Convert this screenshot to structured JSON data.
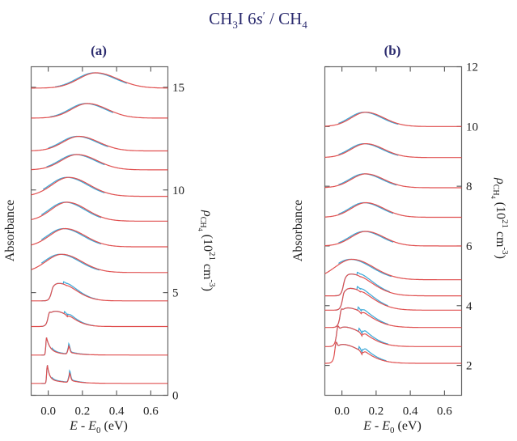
{
  "figure": {
    "title_parts": [
      "CH",
      "3",
      "I 6",
      "s",
      "′",
      " / CH",
      "4"
    ],
    "title_plain": "CH3I 6s' / CH4"
  },
  "chart_data": [
    {
      "type": "line",
      "panel_label": "(a)",
      "xlabel_parts": [
        "E",
        " - ",
        "E",
        "0",
        " (eV)"
      ],
      "xlabel": "E - E0 (eV)",
      "ylabel_left": "Absorbance",
      "ylabel_right_parts": [
        "ρ",
        "CH",
        "4",
        " (10",
        "21",
        " cm",
        "-3",
        ")"
      ],
      "ylabel_right": "ρCH4 (10^21 cm^-3)",
      "xlim": [
        -0.1,
        0.7
      ],
      "xticks": [
        0.0,
        0.2,
        0.4,
        0.6
      ],
      "xtick_labels": [
        "0.0",
        "0.2",
        "0.4",
        "0.6"
      ],
      "ylim_right": [
        0,
        16
      ],
      "yticks_right": [
        0,
        5,
        10,
        15
      ],
      "ytick_labels_right": [
        "0",
        "5",
        "10",
        "15"
      ],
      "grid": false,
      "series_legend": [
        "experiment (blue)",
        "fit (red)"
      ],
      "traces": [
        {
          "density": 0.58,
          "shape": "sharp",
          "peak_eV": -0.005,
          "amp": 1.25,
          "width_eV": 0.012,
          "second_peak_eV": 0.125,
          "second_amp": 0.45,
          "exp_end_eV": 0.22
        },
        {
          "density": 1.96,
          "shape": "sharp",
          "peak_eV": -0.01,
          "amp": 1.2,
          "width_eV": 0.02,
          "second_peak_eV": 0.12,
          "second_amp": 0.4,
          "exp_end_eV": 0.24
        },
        {
          "density": 3.35,
          "shape": "mixed",
          "peak_eV": 0.04,
          "amp": 1.05,
          "width_eV": 0.09,
          "second_peak_eV": 0.115,
          "second_amp": 0.15,
          "exp_end_eV": 0.27
        },
        {
          "density": 4.6,
          "shape": "mixed",
          "peak_eV": 0.06,
          "amp": 1.2,
          "width_eV": 0.1,
          "second_peak_eV": 0.11,
          "second_amp": 0.05,
          "exp_end_eV": 0.29
        },
        {
          "density": 5.98,
          "shape": "broad",
          "peak_eV": 0.08,
          "amp": 1.25,
          "width_eV": 0.11,
          "exp_start_eV": -0.04,
          "exp_end_eV": 0.3
        },
        {
          "density": 7.23,
          "shape": "broad",
          "peak_eV": 0.1,
          "amp": 1.25,
          "width_eV": 0.11,
          "exp_start_eV": -0.04,
          "exp_end_eV": 0.31
        },
        {
          "density": 8.48,
          "shape": "broad",
          "peak_eV": 0.11,
          "amp": 1.3,
          "width_eV": 0.11,
          "exp_start_eV": -0.04,
          "exp_end_eV": 0.31
        },
        {
          "density": 9.69,
          "shape": "broad",
          "peak_eV": 0.12,
          "amp": 1.3,
          "width_eV": 0.115,
          "exp_start_eV": -0.03,
          "exp_end_eV": 0.33
        },
        {
          "density": 10.98,
          "shape": "broad",
          "peak_eV": 0.17,
          "amp": 1.05,
          "width_eV": 0.11,
          "exp_start_eV": -0.01,
          "exp_end_eV": 0.33
        },
        {
          "density": 11.9,
          "shape": "broad",
          "peak_eV": 0.18,
          "amp": 1.0,
          "width_eV": 0.11,
          "exp_start_eV": 0.0,
          "exp_end_eV": 0.35
        },
        {
          "density": 13.5,
          "shape": "broad",
          "peak_eV": 0.23,
          "amp": 1.0,
          "width_eV": 0.11,
          "exp_start_eV": 0.01,
          "exp_end_eV": 0.38
        },
        {
          "density": 14.96,
          "shape": "broad",
          "peak_eV": 0.28,
          "amp": 1.05,
          "width_eV": 0.12,
          "exp_start_eV": 0.04,
          "exp_end_eV": 0.46
        }
      ]
    },
    {
      "type": "line",
      "panel_label": "(b)",
      "xlabel_parts": [
        "E",
        " - ",
        "E",
        "0",
        " (eV)"
      ],
      "xlabel": "E - E0 (eV)",
      "ylabel_left": "Absorbance",
      "ylabel_right_parts": [
        "ρ",
        "CH",
        "4",
        " (10",
        "21",
        " cm",
        "-3",
        ")"
      ],
      "ylabel_right": "ρCH4 (10^21 cm^-3)",
      "xlim": [
        -0.1,
        0.7
      ],
      "xticks": [
        0.0,
        0.2,
        0.4,
        0.6
      ],
      "xtick_labels": [
        "0.0",
        "0.2",
        "0.4",
        "0.6"
      ],
      "ylim_right": [
        1.0,
        12.0
      ],
      "yticks_right": [
        2,
        4,
        6,
        8,
        10,
        12
      ],
      "ytick_labels_right": [
        "2",
        "4",
        "6",
        "8",
        "10",
        "12"
      ],
      "grid": false,
      "series_legend": [
        "experiment (blue)",
        "fit (red)"
      ],
      "traces": [
        {
          "density": 2.07,
          "shape": "mixed",
          "peak_eV": 0.0,
          "amp": 1.3,
          "width_eV": 0.12,
          "second_peak_eV": 0.12,
          "second_amp": 0.35,
          "exp_end_eV": 0.26
        },
        {
          "density": 2.63,
          "shape": "mixed",
          "peak_eV": 0.01,
          "amp": 1.35,
          "width_eV": 0.12,
          "second_peak_eV": 0.12,
          "second_amp": 0.3,
          "exp_end_eV": 0.27
        },
        {
          "density": 3.27,
          "shape": "mixed",
          "peak_eV": 0.03,
          "amp": 1.35,
          "width_eV": 0.12,
          "second_peak_eV": 0.115,
          "second_amp": 0.2,
          "exp_end_eV": 0.27
        },
        {
          "density": 3.85,
          "shape": "mixed",
          "peak_eV": 0.045,
          "amp": 1.5,
          "width_eV": 0.12,
          "second_peak_eV": 0.11,
          "second_amp": 0.1,
          "exp_end_eV": 0.27
        },
        {
          "density": 4.33,
          "shape": "mixed",
          "peak_eV": 0.05,
          "amp": 1.5,
          "width_eV": 0.12,
          "second_peak_eV": 0.11,
          "second_amp": 0.05,
          "exp_end_eV": 0.28
        },
        {
          "density": 4.87,
          "shape": "broad",
          "peak_eV": 0.06,
          "amp": 1.4,
          "width_eV": 0.12,
          "exp_start_eV": -0.02,
          "exp_end_eV": 0.29
        },
        {
          "density": 6.0,
          "shape": "broad",
          "peak_eV": 0.14,
          "amp": 1.0,
          "width_eV": 0.1,
          "exp_start_eV": -0.02,
          "exp_end_eV": 0.3
        },
        {
          "density": 6.96,
          "shape": "broad",
          "peak_eV": 0.14,
          "amp": 1.0,
          "width_eV": 0.1,
          "exp_start_eV": -0.02,
          "exp_end_eV": 0.3
        },
        {
          "density": 7.95,
          "shape": "broad",
          "peak_eV": 0.14,
          "amp": 0.95,
          "width_eV": 0.1,
          "exp_start_eV": -0.02,
          "exp_end_eV": 0.32
        },
        {
          "density": 8.96,
          "shape": "broad",
          "peak_eV": 0.14,
          "amp": 0.95,
          "width_eV": 0.1,
          "exp_start_eV": -0.02,
          "exp_end_eV": 0.33
        },
        {
          "density": 10.0,
          "shape": "broad",
          "peak_eV": 0.14,
          "amp": 0.98,
          "width_eV": 0.1,
          "exp_start_eV": -0.02,
          "exp_end_eV": 0.33
        }
      ]
    }
  ]
}
